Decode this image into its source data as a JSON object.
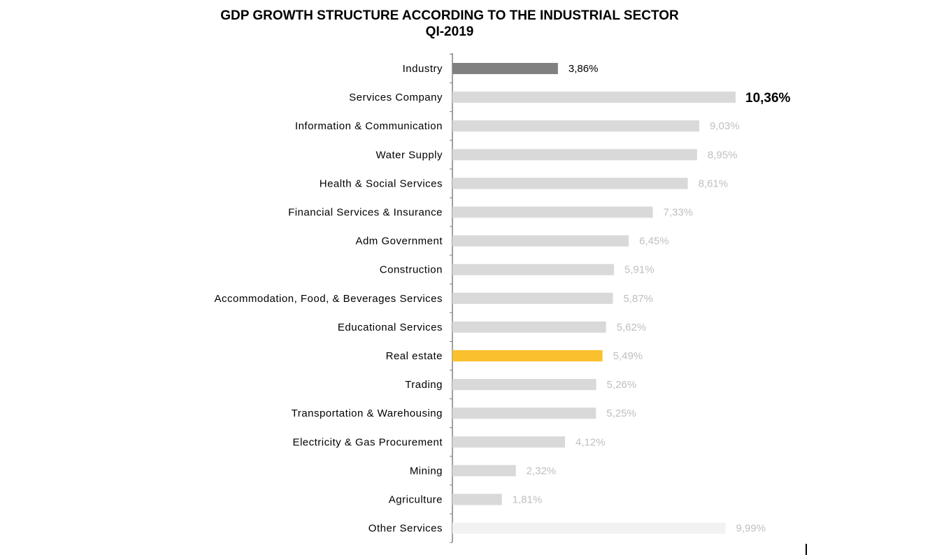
{
  "chart": {
    "title_line1": "GDP GROWTH STRUCTURE ACCORDING TO THE INDUSTRIAL SECTOR",
    "title_line2": "QI-2019"
  },
  "chart_data": {
    "type": "bar",
    "orientation": "horizontal",
    "title": "GDP GROWTH STRUCTURE ACCORDING TO THE INDUSTRIAL SECTOR QI-2019",
    "xlabel": "",
    "ylabel": "",
    "xlim": [
      0,
      10.36
    ],
    "grid": false,
    "categories": [
      "Industry",
      "Services Company",
      "Information & Communication",
      "Water Supply",
      "Health & Social Services",
      "Financial Services & Insurance",
      "Adm Government",
      "Construction",
      "Accommodation, Food, & Beverages Services",
      "Educational Services",
      "Real estate",
      "Trading",
      "Transportation & Warehousing",
      "Electricity & Gas Procurement",
      "Mining",
      "Agriculture",
      "Other Services"
    ],
    "values": [
      3.86,
      10.36,
      9.03,
      8.95,
      8.61,
      7.33,
      6.45,
      5.91,
      5.87,
      5.62,
      5.49,
      5.26,
      5.25,
      4.12,
      2.32,
      1.81,
      9.99
    ],
    "value_labels": [
      "3,86%",
      "10,36%",
      "9,03%",
      "8,95%",
      "8,61%",
      "7,33%",
      "6,45%",
      "5,91%",
      "5,87%",
      "5,62%",
      "5,49%",
      "5,26%",
      "5,25%",
      "4,12%",
      "2,32%",
      "1,81%",
      "9,99%"
    ],
    "bar_colors": [
      "#808080",
      "#d9d9d9",
      "#d9d9d9",
      "#d9d9d9",
      "#d9d9d9",
      "#d9d9d9",
      "#d9d9d9",
      "#d9d9d9",
      "#d9d9d9",
      "#d9d9d9",
      "#fbc02d",
      "#d9d9d9",
      "#d9d9d9",
      "#d9d9d9",
      "#d9d9d9",
      "#d9d9d9",
      "#f2f2f2"
    ],
    "label_colors": [
      "#000000",
      "#000000",
      "#bfbfbf",
      "#bfbfbf",
      "#bfbfbf",
      "#bfbfbf",
      "#bfbfbf",
      "#bfbfbf",
      "#bfbfbf",
      "#bfbfbf",
      "#bfbfbf",
      "#bfbfbf",
      "#bfbfbf",
      "#bfbfbf",
      "#bfbfbf",
      "#bfbfbf",
      "#bfbfbf"
    ],
    "bold_label_index": 1
  }
}
